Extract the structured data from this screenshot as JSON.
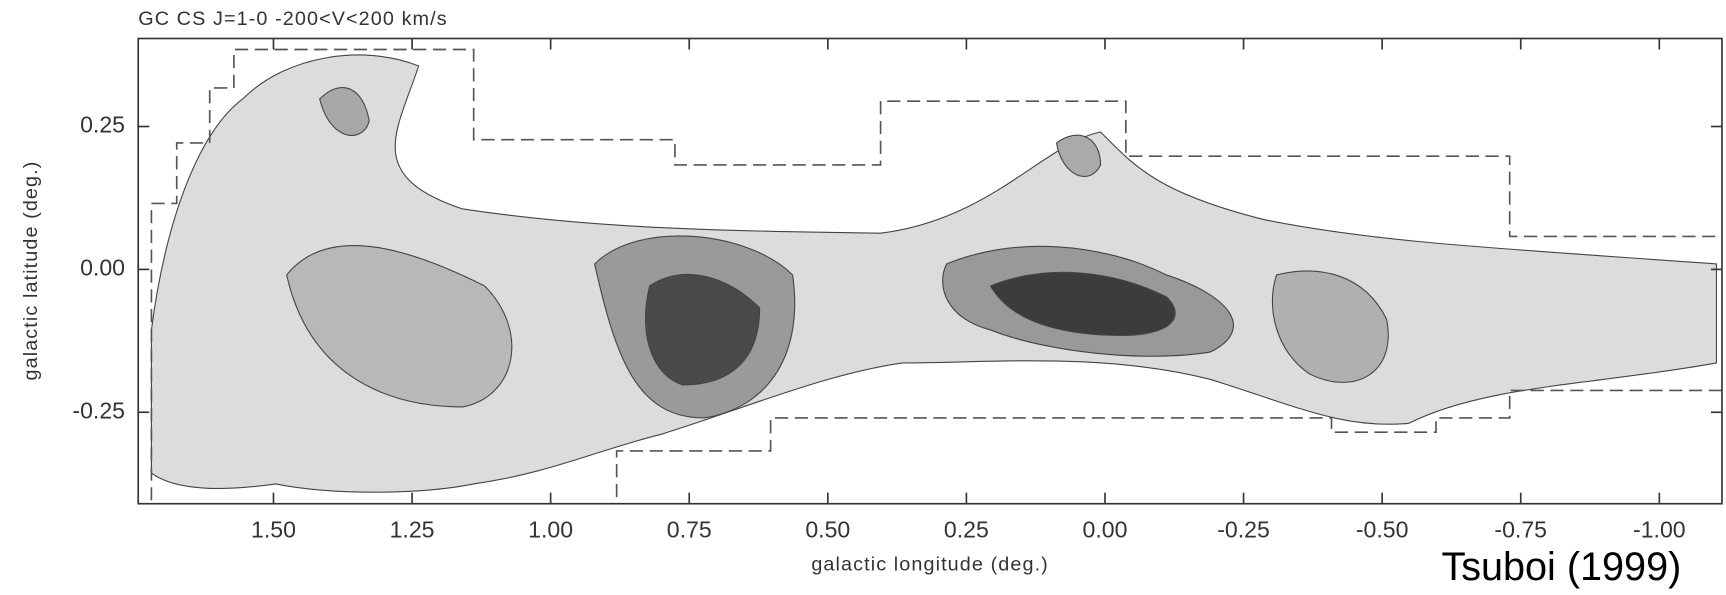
{
  "chart_data": {
    "type": "contour",
    "title": "GC CS J=1-0  -200<V<200 km/s",
    "x_label": "galactic longitude (deg.)",
    "y_label": "galactic latitude (deg.)",
    "annotation": "Tsuboi (1999)",
    "xlim": [
      1.744,
      -1.113
    ],
    "ylim": [
      -0.41,
      0.404
    ],
    "xticks": [
      {
        "value": 1.5,
        "label": "1.50"
      },
      {
        "value": 1.25,
        "label": "1.25"
      },
      {
        "value": 1.0,
        "label": "1.00"
      },
      {
        "value": 0.75,
        "label": "0.75"
      },
      {
        "value": 0.5,
        "label": "0.50"
      },
      {
        "value": 0.25,
        "label": "0.25"
      },
      {
        "value": 0,
        "label": "0.00"
      },
      {
        "value": -0.25,
        "label": "-0.25"
      },
      {
        "value": -0.5,
        "label": "-0.50"
      },
      {
        "value": -0.75,
        "label": "-0.75"
      },
      {
        "value": -1.0,
        "label": "-1.00"
      }
    ],
    "yticks": [
      {
        "value": 0.25,
        "label": "0.25"
      },
      {
        "value": 0,
        "label": "0.00"
      },
      {
        "value": -0.25,
        "label": "-0.25"
      }
    ]
  }
}
